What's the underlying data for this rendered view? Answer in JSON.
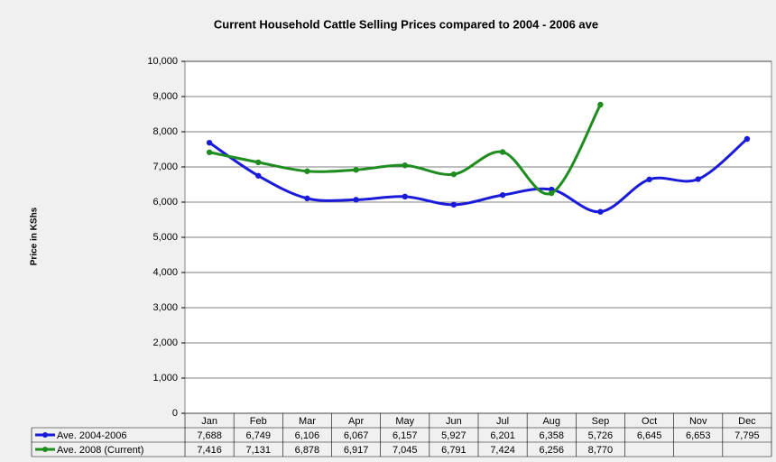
{
  "chart_data": {
    "type": "line",
    "title": "Current Household Cattle Selling Prices compared to 2004 - 2006 ave",
    "y_label": "Price in KShs",
    "categories": [
      "Jan",
      "Feb",
      "Mar",
      "Apr",
      "May",
      "Jun",
      "Jul",
      "Aug",
      "Sep",
      "Oct",
      "Nov",
      "Dec"
    ],
    "series": [
      {
        "name": "Ave. 2004-2006",
        "color": "#1a1adb",
        "values": [
          7688,
          6749,
          6106,
          6067,
          6157,
          5927,
          6201,
          6358,
          5726,
          6645,
          6653,
          7795
        ],
        "value_labels": [
          "7,688",
          "6,749",
          "6,106",
          "6,067",
          "6,157",
          "5,927",
          "6,201",
          "6,358",
          "5,726",
          "6,645",
          "6,653",
          "7,795"
        ]
      },
      {
        "name": "Ave. 2008 (Current)",
        "color": "#1e8c1e",
        "values": [
          7416,
          7131,
          6878,
          6917,
          7045,
          6791,
          7424,
          6256,
          8770,
          null,
          null,
          null
        ],
        "value_labels": [
          "7,416",
          "7,131",
          "6,878",
          "6,917",
          "7,045",
          "6,791",
          "7,424",
          "6,256",
          "8,770",
          null,
          null,
          null
        ]
      }
    ],
    "ylim": [
      0,
      10000
    ],
    "yticks": [
      0,
      {
        "value": 1000,
        "label": "1,000"
      },
      {
        "value": 2000,
        "label": "2,000"
      },
      {
        "value": 3000,
        "label": "3,000"
      },
      {
        "value": 4000,
        "label": "4,000"
      },
      {
        "value": 5000,
        "label": "5,000"
      },
      {
        "value": 6000,
        "label": "6,000"
      },
      {
        "value": 7000,
        "label": "7,000"
      },
      {
        "value": 8000,
        "label": "8,000"
      },
      {
        "value": 9000,
        "label": "9,000"
      },
      {
        "value": 10000,
        "label": "10,000"
      }
    ],
    "grid": true,
    "smooth": true,
    "data_table": true
  }
}
